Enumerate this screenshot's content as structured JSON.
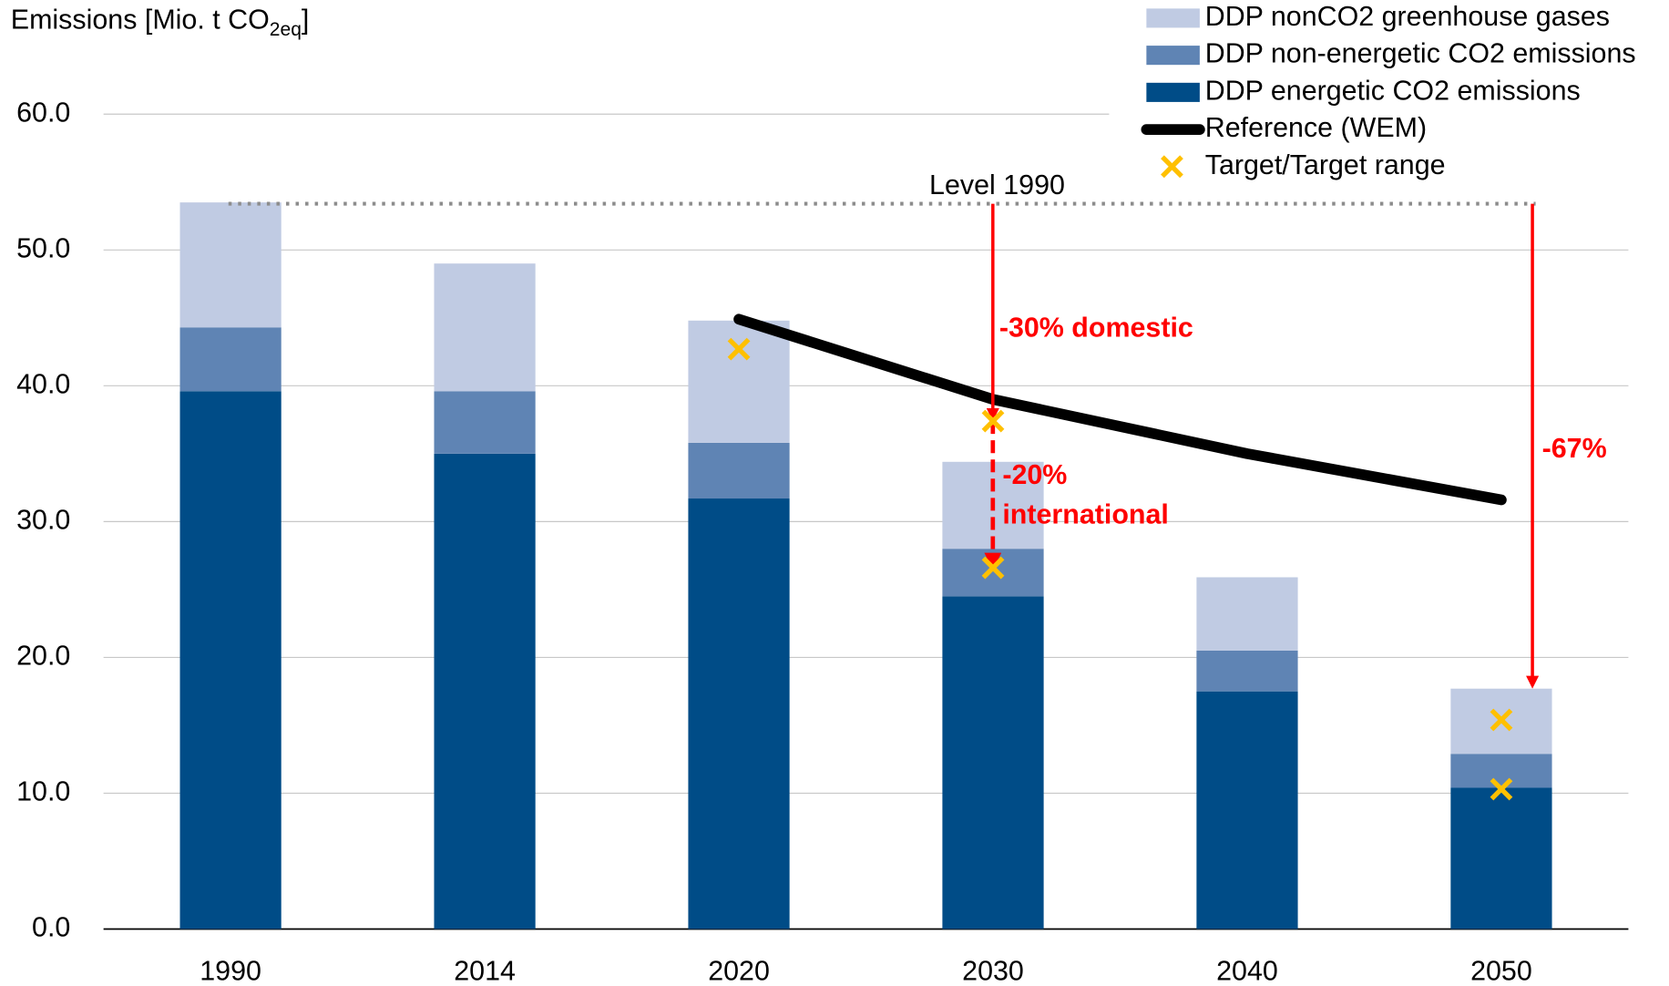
{
  "chart_data": {
    "type": "bar",
    "stacked": true,
    "ylabel": [
      "Emissions [Mio. t CO",
      "2eq",
      "]"
    ],
    "categories": [
      "1990",
      "2014",
      "2020",
      "2030",
      "2040",
      "2050"
    ],
    "series": [
      {
        "name": "DDP energetic CO2 emissions",
        "color": "#004c87",
        "values": [
          39.6,
          35.0,
          31.7,
          24.5,
          17.5,
          10.4
        ]
      },
      {
        "name": "DDP non-energetic CO2 emissions",
        "color": "#5f84b4",
        "values": [
          4.7,
          4.6,
          4.1,
          3.5,
          3.0,
          2.5
        ]
      },
      {
        "name": "DDP nonCO2 greenhouse gases",
        "color": "#c0cbe3",
        "values": [
          9.2,
          9.4,
          9.0,
          6.4,
          5.4,
          4.8
        ]
      }
    ],
    "reference": {
      "name": "Reference (WEM)",
      "color": "#000000",
      "x": [
        "2020",
        "2030",
        "2040",
        "2050"
      ],
      "values": [
        44.9,
        39.0,
        35.0,
        31.6
      ]
    },
    "targets": {
      "name": "Target/Target range",
      "color": "#ffc000",
      "x": [
        "2020",
        "2030",
        "2030",
        "2050",
        "2050"
      ],
      "values": [
        42.7,
        37.4,
        26.6,
        15.4,
        10.3
      ]
    },
    "level": {
      "label": "Level 1990",
      "value": 53.4
    },
    "annotations": [
      "-30% domestic",
      "-20%",
      "international",
      "-67%"
    ],
    "annotation_color": "#ff0000",
    "ylim": [
      0,
      60
    ],
    "yticks": [
      {
        "value": 0,
        "label": "0.0"
      },
      {
        "value": 10,
        "label": "10.0"
      },
      {
        "value": 20,
        "label": "20.0"
      },
      {
        "value": 30,
        "label": "30.0"
      },
      {
        "value": 40,
        "label": "40.0"
      },
      {
        "value": 50,
        "label": "50.0"
      },
      {
        "value": 60,
        "label": "60.0"
      }
    ],
    "grid": true,
    "legend": "top-right"
  }
}
